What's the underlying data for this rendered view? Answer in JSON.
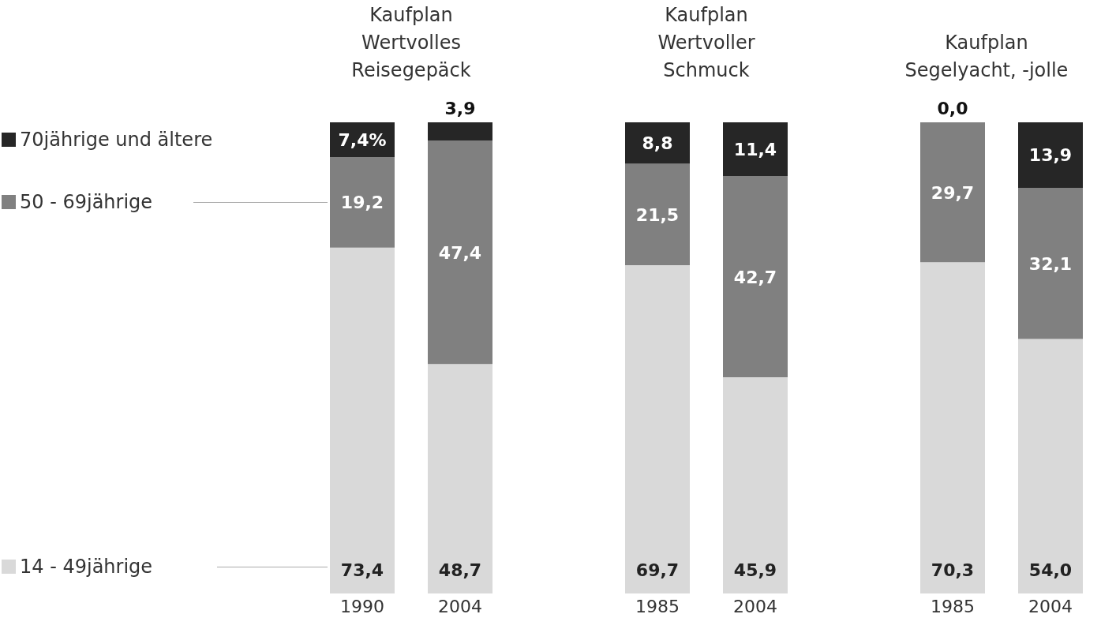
{
  "chart_data": [
    {
      "type": "bar",
      "title": "Kaufplan\nWertvolles\nReisegepäck",
      "categories": [
        "1990",
        "2004"
      ],
      "stacked": true,
      "legend": "left",
      "series": [
        {
          "name": "14 - 49jährige",
          "color": "#d9d9d9",
          "values": [
            73.4,
            48.7
          ],
          "value_labels": [
            "73,4",
            "48,7"
          ]
        },
        {
          "name": "50 - 69jährige",
          "color": "#808080",
          "values": [
            19.2,
            47.4
          ],
          "value_labels": [
            "19,2",
            "47,4"
          ]
        },
        {
          "name": "70jährige und ältere",
          "color": "#262626",
          "values": [
            7.4,
            3.9
          ],
          "value_labels": [
            "7,4%",
            "3,9"
          ]
        }
      ]
    },
    {
      "type": "bar",
      "title": "Kaufplan\nWertvoller\nSchmuck",
      "categories": [
        "1985",
        "2004"
      ],
      "stacked": true,
      "series": [
        {
          "color": "#d9d9d9",
          "values": [
            69.7,
            45.9
          ],
          "value_labels": [
            "69,7",
            "45,9"
          ]
        },
        {
          "color": "#808080",
          "values": [
            21.5,
            42.7
          ],
          "value_labels": [
            "21,5",
            "42,7"
          ]
        },
        {
          "color": "#262626",
          "values": [
            8.8,
            11.4
          ],
          "value_labels": [
            "8,8",
            "11,4"
          ]
        }
      ]
    },
    {
      "type": "bar",
      "title": "Kaufplan\nSegelyacht, -jolle",
      "categories": [
        "1985",
        "2004"
      ],
      "stacked": true,
      "series": [
        {
          "color": "#d9d9d9",
          "values": [
            70.3,
            54.0
          ],
          "value_labels": [
            "70,3",
            "54,0"
          ]
        },
        {
          "color": "#808080",
          "values": [
            29.7,
            32.1
          ],
          "value_labels": [
            "29,7",
            "32,1"
          ]
        },
        {
          "color": "#262626",
          "values": [
            0.0,
            13.9
          ],
          "value_labels": [
            "0,0",
            "13,9"
          ]
        }
      ]
    }
  ]
}
